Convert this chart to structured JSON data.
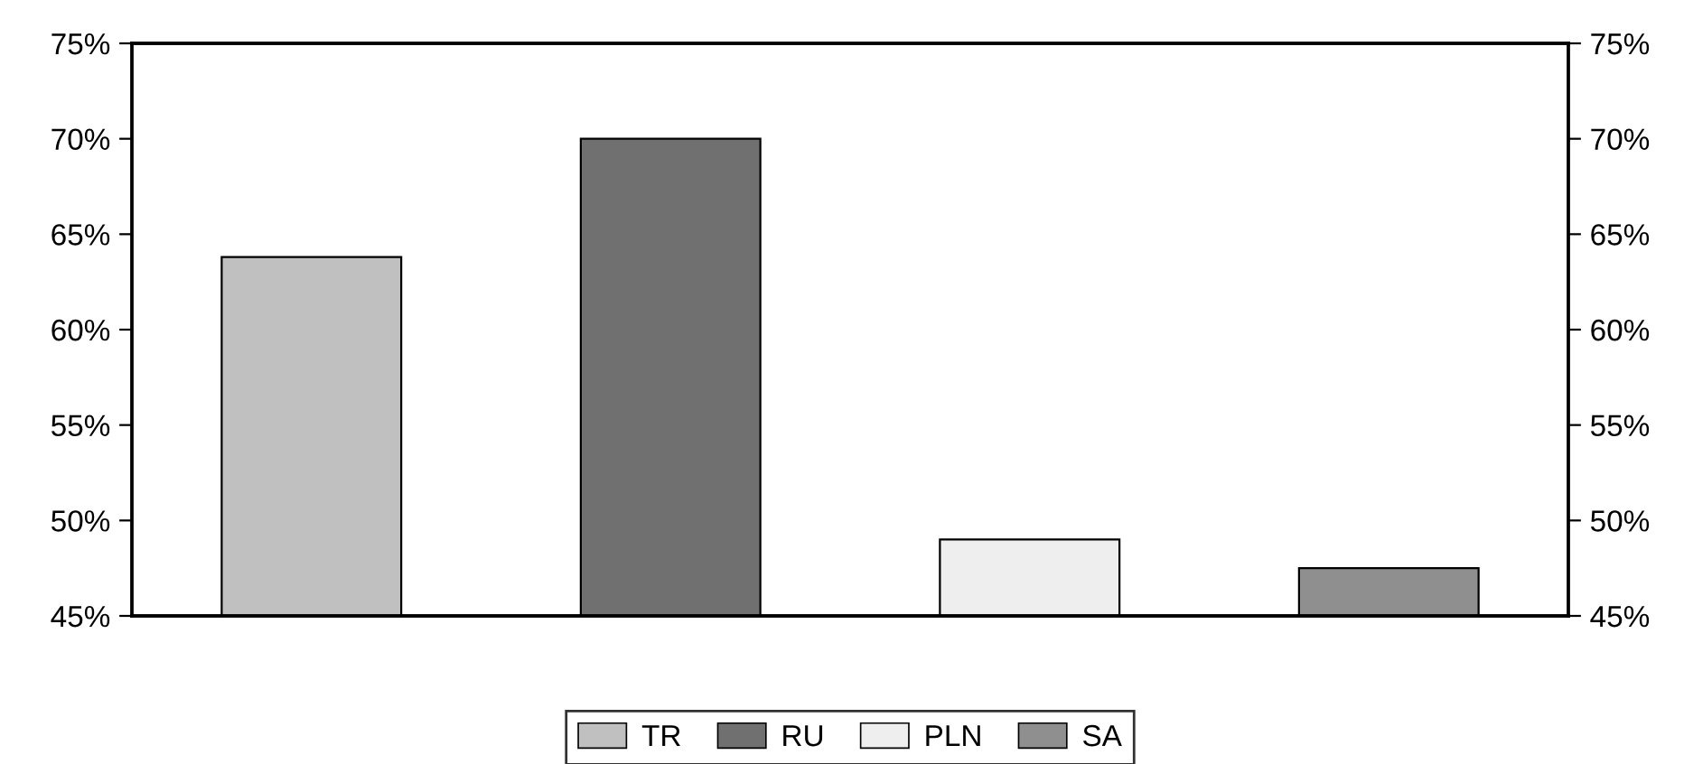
{
  "chart_data": {
    "type": "bar",
    "categories": [
      null,
      null,
      null,
      null
    ],
    "series": [
      {
        "name": "TR",
        "color": "#c0c0c0",
        "values": [
          63.8,
          null,
          null,
          null
        ]
      },
      {
        "name": "RU",
        "color": "#707070",
        "values": [
          null,
          70.0,
          null,
          null
        ]
      },
      {
        "name": "PLN",
        "color": "#eeeeee",
        "values": [
          null,
          null,
          49.0,
          null
        ]
      },
      {
        "name": "SA",
        "color": "#8f8f8f",
        "values": [
          null,
          null,
          null,
          47.5
        ]
      }
    ],
    "ylim": [
      45,
      75
    ],
    "yticks": [
      {
        "value": 45,
        "label": "45%"
      },
      {
        "value": 50,
        "label": "50%"
      },
      {
        "value": 55,
        "label": "55%"
      },
      {
        "value": 60,
        "label": "60%"
      },
      {
        "value": 65,
        "label": "65%"
      },
      {
        "value": 70,
        "label": "70%"
      },
      {
        "value": 75,
        "label": "75%"
      }
    ],
    "y2lim": [
      45,
      75
    ],
    "y2ticks": [
      {
        "value": 45,
        "label": "45%"
      },
      {
        "value": 50,
        "label": "50%"
      },
      {
        "value": 55,
        "label": "55%"
      },
      {
        "value": 60,
        "label": "60%"
      },
      {
        "value": 65,
        "label": "65%"
      },
      {
        "value": 70,
        "label": "70%"
      },
      {
        "value": 75,
        "label": "75%"
      }
    ],
    "tick_labels": "y",
    "grid": false,
    "legend": "bottom"
  }
}
